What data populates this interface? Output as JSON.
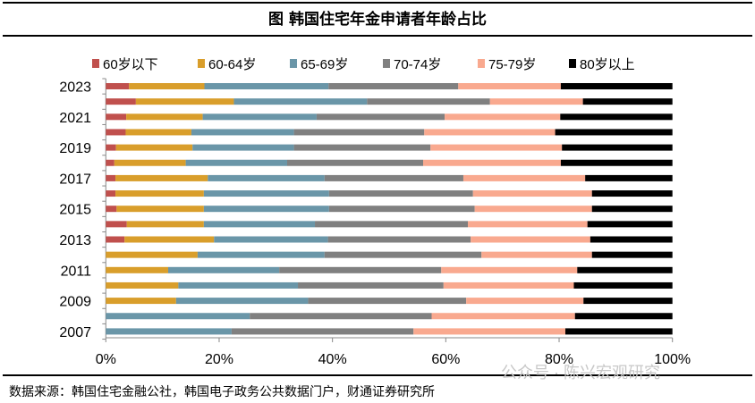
{
  "chart_data": {
    "type": "bar",
    "orientation": "horizontal",
    "stacked": true,
    "title": "图  韩国住宅年金申请者年龄占比",
    "categories": [
      "2023",
      "2022",
      "2021",
      "2020",
      "2019",
      "2018",
      "2017",
      "2016",
      "2015",
      "2014",
      "2013",
      "2012",
      "2011",
      "2010",
      "2009",
      "2008",
      "2007"
    ],
    "category_labels_shown": [
      "2023",
      "",
      "2021",
      "",
      "2019",
      "",
      "2017",
      "",
      "2015",
      "",
      "2013",
      "",
      "2011",
      "",
      "2009",
      "",
      "2007"
    ],
    "series": [
      {
        "name": "60岁以下",
        "color": "#C0504D",
        "values": [
          4.1,
          5.3,
          3.6,
          3.5,
          1.8,
          1.5,
          1.7,
          1.7,
          1.9,
          3.7,
          3.3,
          0,
          0,
          0,
          0,
          0,
          0
        ]
      },
      {
        "name": "60-64岁",
        "color": "#D99E2B",
        "values": [
          13.3,
          17.3,
          13.5,
          11.6,
          13.5,
          12.6,
          16.3,
          15.6,
          15.4,
          13.6,
          15.8,
          16.2,
          11.0,
          12.8,
          12.4,
          0,
          0
        ]
      },
      {
        "name": "65-69岁",
        "color": "#6A96A8",
        "values": [
          21.9,
          23.5,
          20.1,
          18.1,
          17.9,
          17.9,
          20.6,
          22.1,
          22.1,
          19.6,
          20.1,
          22.4,
          19.6,
          21.1,
          23.3,
          25.4,
          22.2
        ]
      },
      {
        "name": "70-74岁",
        "color": "#808080",
        "values": [
          22.9,
          21.7,
          22.6,
          23.0,
          24.1,
          24.0,
          24.5,
          25.4,
          25.7,
          27.0,
          25.2,
          27.7,
          28.6,
          25.7,
          27.9,
          32.1,
          32.1
        ]
      },
      {
        "name": "75-79岁",
        "color": "#F9A98F",
        "values": [
          18.1,
          16.4,
          20.4,
          23.1,
          23.2,
          24.3,
          21.5,
          21.0,
          20.7,
          21.1,
          21.1,
          19.5,
          24.0,
          23.0,
          20.7,
          25.3,
          26.8
        ]
      },
      {
        "name": "80岁以上",
        "color": "#000000",
        "values": [
          19.7,
          15.8,
          19.8,
          20.7,
          19.5,
          19.7,
          15.4,
          14.2,
          14.2,
          15.0,
          14.5,
          14.2,
          16.8,
          17.4,
          15.7,
          17.2,
          18.9
        ]
      }
    ],
    "xlim": [
      0,
      100
    ],
    "xticks": [
      "0%",
      "20%",
      "40%",
      "60%",
      "80%",
      "100%"
    ],
    "legend_position": "top",
    "grid": false,
    "xlabel": "",
    "ylabel": ""
  },
  "source": "数据来源：韩国住宅金融公社，韩国电子政务公共数据门户，财通证券研究所",
  "watermark": "公众号 · 陈兴宏观研究"
}
